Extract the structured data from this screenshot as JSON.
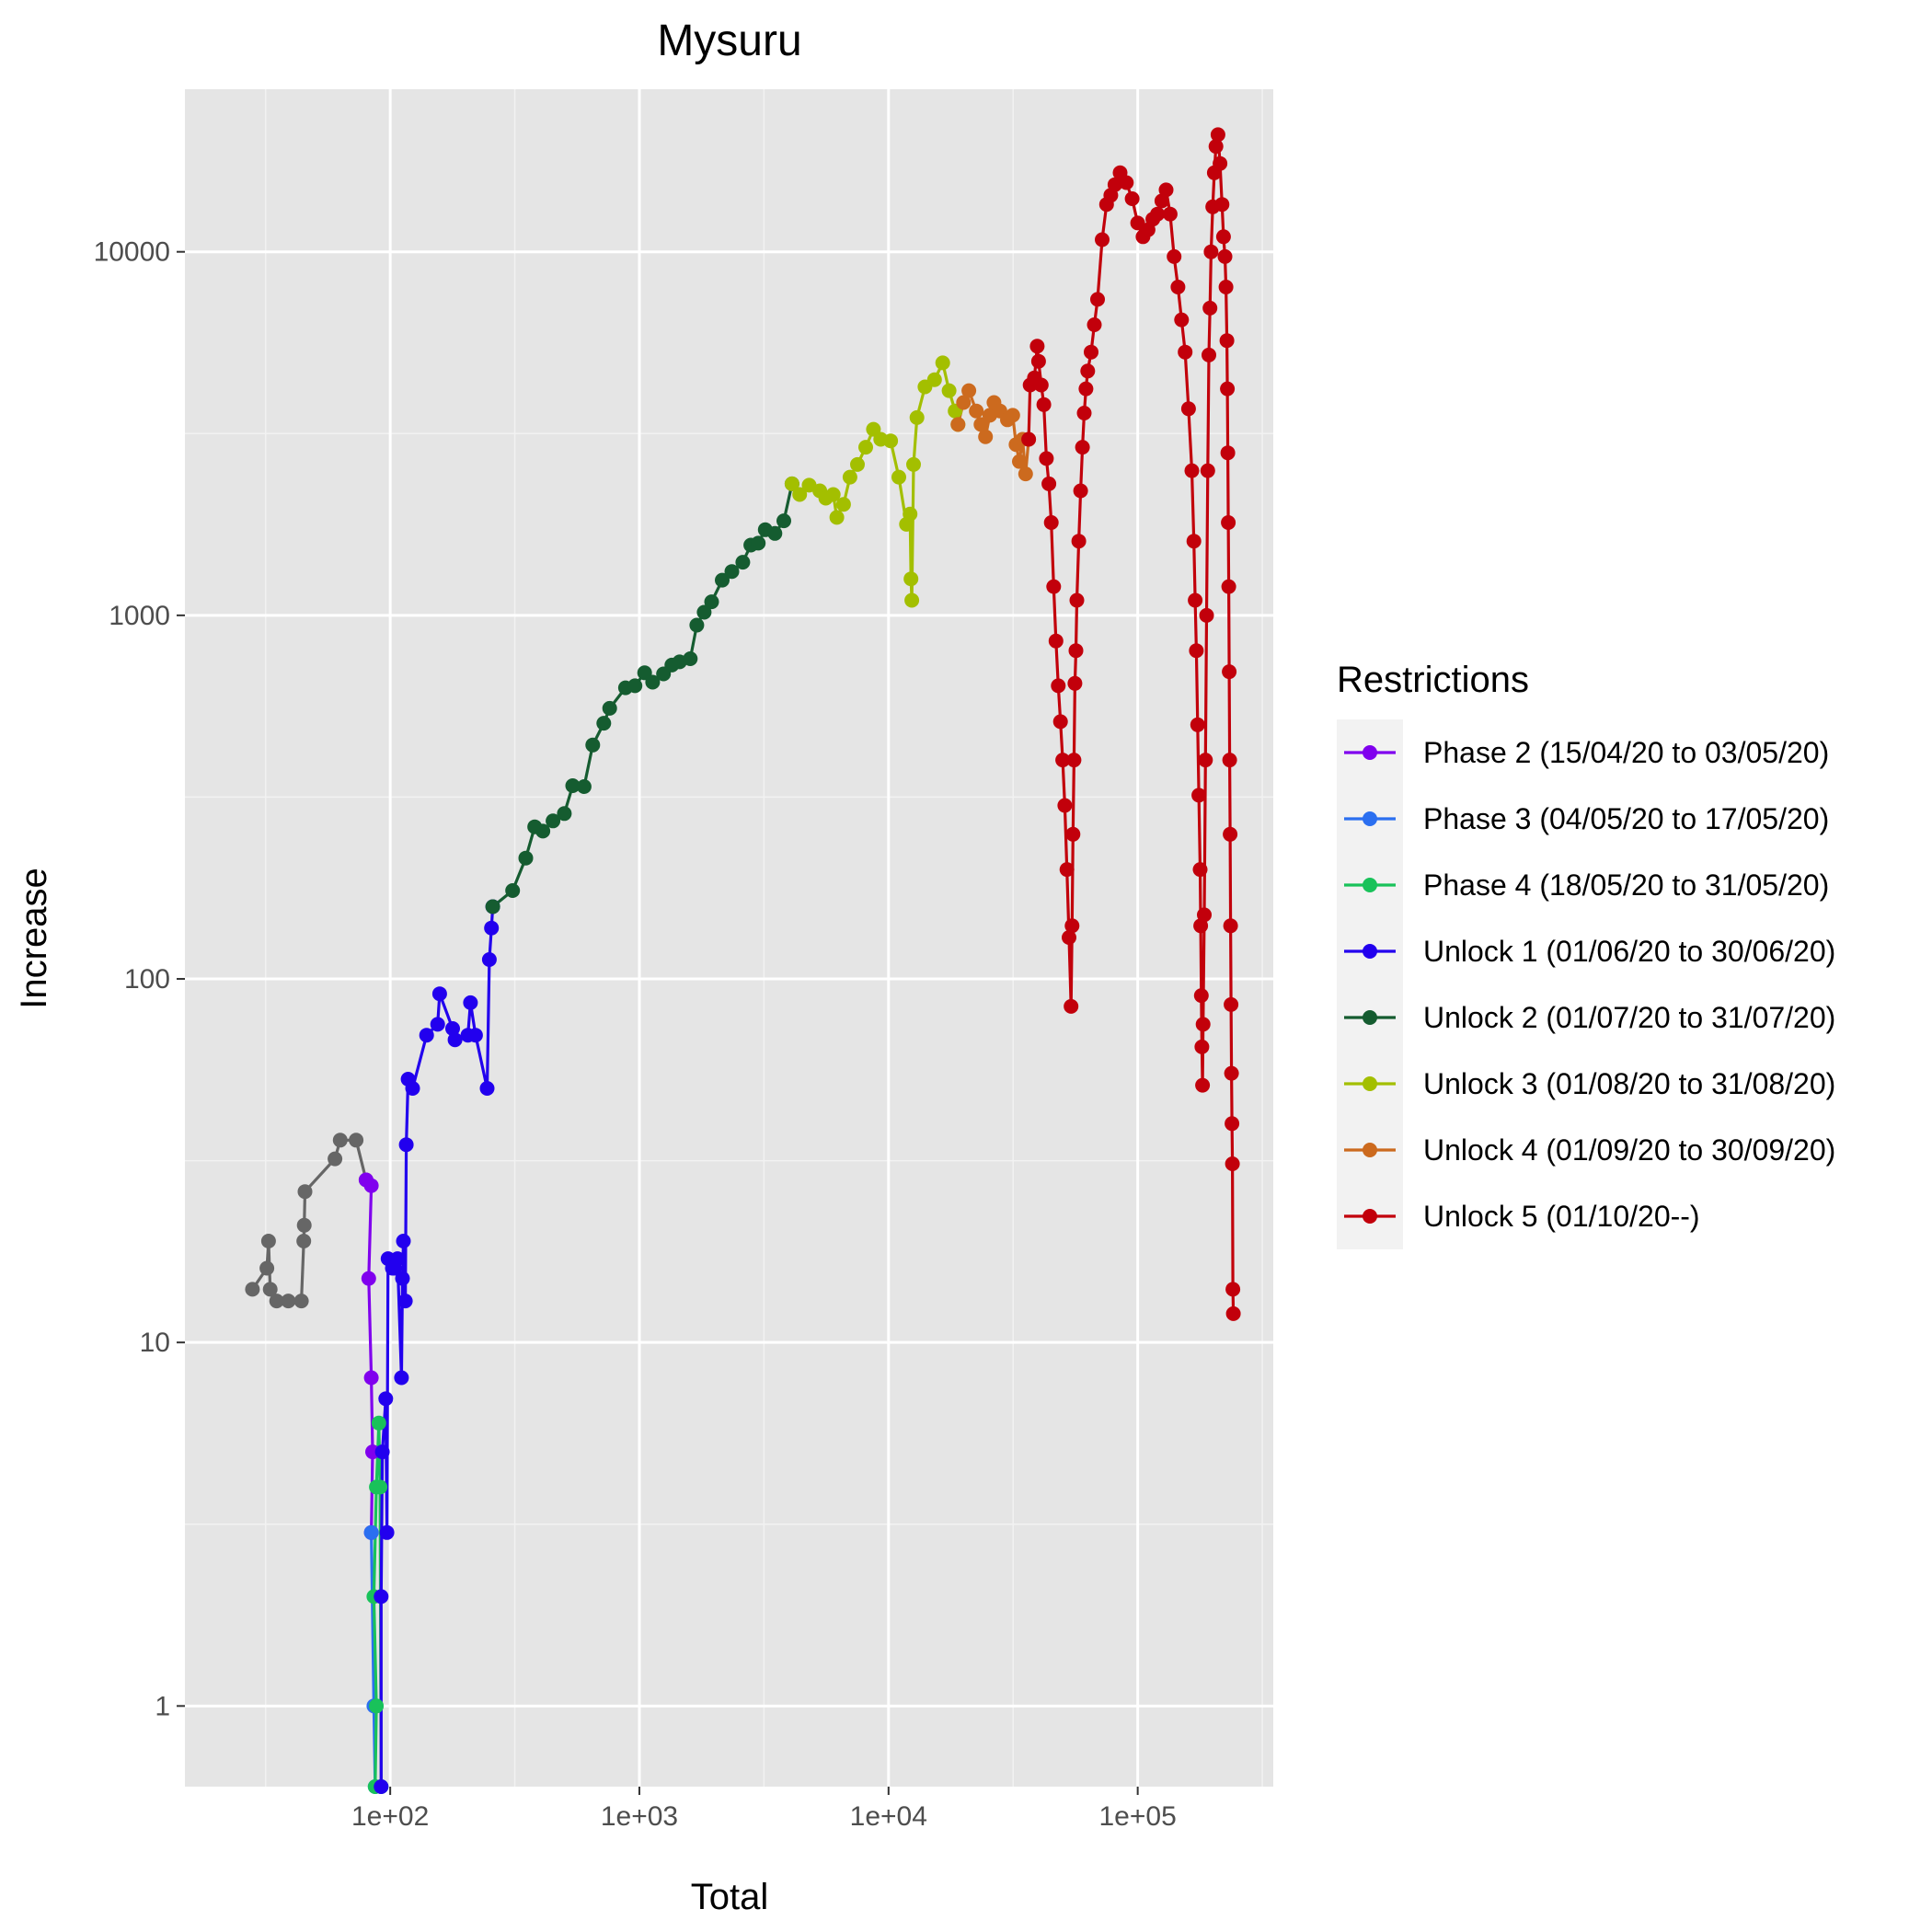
{
  "chart_data": {
    "type": "line",
    "title": "Mysuru",
    "xlabel": "Total",
    "ylabel": "Increase",
    "x_scale": "log10",
    "y_scale": "log10",
    "xlim": [
      15,
      350000
    ],
    "ylim": [
      0.6,
      28000
    ],
    "x_ticks": [
      {
        "value": 100,
        "label": "1e+02"
      },
      {
        "value": 1000,
        "label": "1e+03"
      },
      {
        "value": 10000,
        "label": "1e+04"
      },
      {
        "value": 100000,
        "label": "1e+05"
      }
    ],
    "y_ticks": [
      {
        "value": 1,
        "label": "1"
      },
      {
        "value": 10,
        "label": "10"
      },
      {
        "value": 100,
        "label": "100"
      },
      {
        "value": 1000,
        "label": "1000"
      },
      {
        "value": 10000,
        "label": "10000"
      }
    ],
    "grid": true,
    "panel_background": "#e5e5e5",
    "legend": {
      "title": "Restrictions",
      "position": "right"
    },
    "series": [
      {
        "name": "",
        "in_legend": false,
        "color": "#666666",
        "points": [
          [
            28,
            14
          ],
          [
            32,
            16
          ],
          [
            32.5,
            19
          ],
          [
            33,
            14
          ],
          [
            35,
            13
          ],
          [
            39,
            13
          ],
          [
            44,
            13
          ],
          [
            45,
            19
          ],
          [
            45.2,
            21
          ],
          [
            45.5,
            26
          ],
          [
            60,
            32
          ],
          [
            63,
            36
          ],
          [
            73,
            36
          ],
          [
            80,
            28
          ]
        ]
      },
      {
        "name": "Phase 2 (15/04/20 to 03/05/20)",
        "in_legend": true,
        "color": "#8000ee",
        "points": [
          [
            80,
            28
          ],
          [
            84,
            27
          ],
          [
            82,
            15
          ],
          [
            84,
            8
          ],
          [
            85,
            5
          ],
          [
            84,
            3
          ]
        ]
      },
      {
        "name": "Phase 3 (04/05/20 to 17/05/20)",
        "in_legend": true,
        "color": "#2b6ff0",
        "points": [
          [
            84,
            3
          ],
          [
            86,
            1
          ],
          [
            87,
            0.55
          ]
        ]
      },
      {
        "name": "Phase 4 (18/05/20 to 31/05/20)",
        "in_legend": true,
        "color": "#19c25a",
        "points": [
          [
            87,
            0.55
          ],
          [
            88,
            1
          ],
          [
            86,
            2
          ],
          [
            88,
            4
          ],
          [
            90,
            6
          ],
          [
            91,
            4
          ],
          [
            92,
            0.55
          ]
        ]
      },
      {
        "name": "Unlock 1 (01/06/20 to 30/06/20)",
        "in_legend": true,
        "color": "#2200ee",
        "points": [
          [
            92,
            0.55
          ],
          [
            92,
            2
          ],
          [
            93,
            5
          ],
          [
            96,
            7
          ],
          [
            97,
            3
          ],
          [
            98,
            17
          ],
          [
            102,
            16
          ],
          [
            104,
            16
          ],
          [
            107,
            17
          ],
          [
            111,
            8
          ],
          [
            112,
            15
          ],
          [
            113,
            19
          ],
          [
            115,
            13
          ],
          [
            116,
            35
          ],
          [
            118,
            53
          ],
          [
            123,
            50
          ],
          [
            140,
            70
          ],
          [
            155,
            75
          ],
          [
            158,
            91
          ],
          [
            178,
            73
          ],
          [
            182,
            68
          ],
          [
            205,
            70
          ],
          [
            210,
            86
          ],
          [
            220,
            70
          ],
          [
            245,
            50
          ],
          [
            250,
            113
          ],
          [
            255,
            138
          ],
          [
            258,
            158
          ]
        ]
      },
      {
        "name": "Unlock 2 (01/07/20 to 31/07/20)",
        "in_legend": true,
        "color": "#155c30",
        "points": [
          [
            258,
            158
          ],
          [
            310,
            175
          ],
          [
            350,
            215
          ],
          [
            380,
            262
          ],
          [
            410,
            255
          ],
          [
            450,
            272
          ],
          [
            500,
            285
          ],
          [
            540,
            340
          ],
          [
            600,
            338
          ],
          [
            650,
            440
          ],
          [
            720,
            505
          ],
          [
            760,
            555
          ],
          [
            880,
            632
          ],
          [
            960,
            640
          ],
          [
            1050,
            695
          ],
          [
            1130,
            655
          ],
          [
            1250,
            690
          ],
          [
            1350,
            730
          ],
          [
            1450,
            745
          ],
          [
            1600,
            760
          ],
          [
            1700,
            940
          ],
          [
            1820,
            1020
          ],
          [
            1950,
            1090
          ],
          [
            2150,
            1250
          ],
          [
            2350,
            1320
          ],
          [
            2600,
            1400
          ],
          [
            2800,
            1560
          ],
          [
            3000,
            1580
          ],
          [
            3200,
            1720
          ],
          [
            3500,
            1680
          ],
          [
            3800,
            1820
          ],
          [
            4100,
            2300
          ]
        ]
      },
      {
        "name": "Unlock 3 (01/08/20 to 31/08/20)",
        "in_legend": true,
        "color": "#a3bf00",
        "points": [
          [
            4100,
            2300
          ],
          [
            4400,
            2150
          ],
          [
            4800,
            2280
          ],
          [
            5300,
            2200
          ],
          [
            5600,
            2100
          ],
          [
            6000,
            2150
          ],
          [
            6200,
            1860
          ],
          [
            6600,
            2020
          ],
          [
            7000,
            2400
          ],
          [
            7500,
            2600
          ],
          [
            8100,
            2900
          ],
          [
            8700,
            3250
          ],
          [
            9300,
            3050
          ],
          [
            10200,
            3020
          ],
          [
            11000,
            2400
          ],
          [
            11800,
            1780
          ],
          [
            12200,
            1900
          ],
          [
            12300,
            1260
          ],
          [
            12400,
            1100
          ],
          [
            12600,
            2600
          ],
          [
            13000,
            3500
          ],
          [
            14000,
            4250
          ],
          [
            15300,
            4450
          ],
          [
            16500,
            4950
          ],
          [
            17500,
            4150
          ],
          [
            18500,
            3650
          ],
          [
            19000,
            3350
          ]
        ]
      },
      {
        "name": "Unlock 4 (01/09/20 to 30/09/20)",
        "in_legend": true,
        "color": "#cc6a1e",
        "points": [
          [
            19000,
            3350
          ],
          [
            20000,
            3850
          ],
          [
            21000,
            4150
          ],
          [
            22500,
            3650
          ],
          [
            23500,
            3350
          ],
          [
            24500,
            3100
          ],
          [
            25500,
            3550
          ],
          [
            26500,
            3850
          ],
          [
            28000,
            3650
          ],
          [
            30000,
            3450
          ],
          [
            31500,
            3550
          ],
          [
            32500,
            2950
          ],
          [
            33500,
            2650
          ],
          [
            34500,
            3050
          ],
          [
            35500,
            2450
          ],
          [
            36500,
            3050
          ]
        ]
      },
      {
        "name": "Unlock 5 (01/10/20--)",
        "in_legend": true,
        "color": "#c2000b",
        "points": [
          [
            36500,
            3050
          ],
          [
            37000,
            4300
          ],
          [
            38500,
            4500
          ],
          [
            39500,
            5500
          ],
          [
            40000,
            5000
          ],
          [
            41000,
            4300
          ],
          [
            42000,
            3800
          ],
          [
            43000,
            2700
          ],
          [
            44000,
            2300
          ],
          [
            45000,
            1800
          ],
          [
            46000,
            1200
          ],
          [
            47000,
            850
          ],
          [
            48000,
            640
          ],
          [
            49000,
            510
          ],
          [
            50000,
            400
          ],
          [
            51000,
            300
          ],
          [
            52000,
            200
          ],
          [
            53000,
            130
          ],
          [
            54000,
            84
          ],
          [
            54500,
            140
          ],
          [
            55000,
            250
          ],
          [
            55500,
            400
          ],
          [
            56000,
            650
          ],
          [
            56500,
            800
          ],
          [
            57000,
            1100
          ],
          [
            58000,
            1600
          ],
          [
            59000,
            2200
          ],
          [
            60000,
            2900
          ],
          [
            61000,
            3600
          ],
          [
            62000,
            4200
          ],
          [
            63000,
            4700
          ],
          [
            65000,
            5300
          ],
          [
            67000,
            6300
          ],
          [
            69000,
            7400
          ],
          [
            72000,
            10800
          ],
          [
            75000,
            13500
          ],
          [
            78000,
            14300
          ],
          [
            81000,
            15300
          ],
          [
            85000,
            16500
          ],
          [
            90000,
            15500
          ],
          [
            95000,
            14000
          ],
          [
            100000,
            12000
          ],
          [
            105000,
            11000
          ],
          [
            110000,
            11500
          ],
          [
            115000,
            12300
          ],
          [
            120000,
            12700
          ],
          [
            125000,
            13800
          ],
          [
            130000,
            14800
          ],
          [
            135000,
            12700
          ],
          [
            140000,
            9700
          ],
          [
            145000,
            8000
          ],
          [
            150000,
            6500
          ],
          [
            155000,
            5300
          ],
          [
            160000,
            3700
          ],
          [
            165000,
            2500
          ],
          [
            168000,
            1600
          ],
          [
            170000,
            1100
          ],
          [
            172000,
            800
          ],
          [
            174000,
            500
          ],
          [
            176000,
            320
          ],
          [
            178000,
            200
          ],
          [
            179000,
            140
          ],
          [
            180000,
            90
          ],
          [
            181000,
            65
          ],
          [
            182000,
            51
          ],
          [
            183000,
            75
          ],
          [
            185000,
            150
          ],
          [
            187000,
            400
          ],
          [
            189000,
            1000
          ],
          [
            191000,
            2500
          ],
          [
            193000,
            5200
          ],
          [
            195000,
            7000
          ],
          [
            197000,
            10000
          ],
          [
            200000,
            13300
          ],
          [
            203000,
            16500
          ],
          [
            206000,
            19500
          ],
          [
            210000,
            21000
          ],
          [
            214000,
            17500
          ],
          [
            218000,
            13500
          ],
          [
            221000,
            11000
          ],
          [
            224000,
            9700
          ],
          [
            226000,
            8000
          ],
          [
            228000,
            5700
          ],
          [
            229000,
            4200
          ],
          [
            230000,
            2800
          ],
          [
            231000,
            1800
          ],
          [
            232000,
            1200
          ],
          [
            233000,
            700
          ],
          [
            234000,
            400
          ],
          [
            235000,
            250
          ],
          [
            236000,
            140
          ],
          [
            237000,
            85
          ],
          [
            238000,
            55
          ],
          [
            239000,
            40
          ],
          [
            240000,
            31
          ],
          [
            241000,
            14
          ],
          [
            242000,
            12
          ]
        ]
      }
    ]
  }
}
